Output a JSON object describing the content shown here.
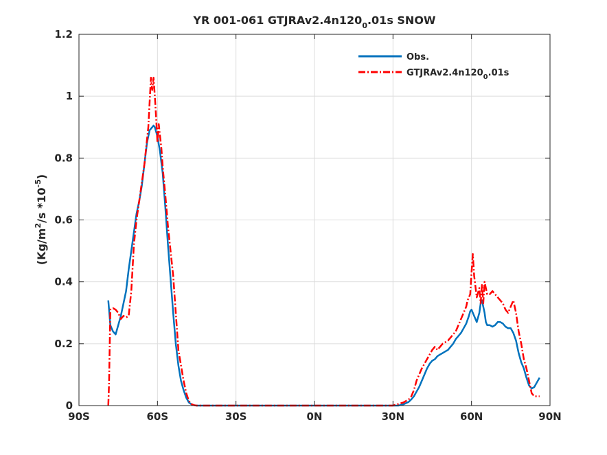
{
  "chart_data": {
    "type": "line",
    "title": "YR 001-061 GTJRAv2.4n120",
    "title_subscript": "0",
    "title_suffix": ".01s SNOW",
    "ylabel": "(Kg/m",
    "ylabel_sup1": "2",
    "ylabel_mid": "/s *10",
    "ylabel_sup2": "-5",
    "ylabel_end": ")",
    "xlim": [
      -90,
      90
    ],
    "ylim": [
      0,
      1.2
    ],
    "grid": true,
    "legend_position": "top-right",
    "x_ticks": [
      -90,
      -60,
      -30,
      0,
      30,
      60,
      90
    ],
    "x_tick_labels": [
      "90S",
      "60S",
      "30S",
      "0N",
      "30N",
      "60N",
      "90N"
    ],
    "y_ticks": [
      0,
      0.2,
      0.4,
      0.6,
      0.8,
      1,
      1.2
    ],
    "y_tick_labels": [
      "0",
      "0.2",
      "0.4",
      "0.6",
      "0.8",
      "1",
      "1.2"
    ],
    "series": [
      {
        "name": "Obs.",
        "color": "#0072BD",
        "dash": "solid",
        "x": [
          -78.8,
          -78,
          -77,
          -76,
          -75,
          -74,
          -73,
          -72,
          -71,
          -70,
          -69,
          -68,
          -67,
          -66,
          -65,
          -64,
          -63,
          -62,
          -61.5,
          -61,
          -60,
          -59,
          -58,
          -57,
          -56,
          -55,
          -54,
          -53,
          -52,
          -51,
          -50,
          -49,
          -48,
          -47,
          -46,
          -45,
          -40,
          -30,
          -20,
          -10,
          0,
          10,
          20,
          28,
          30,
          32,
          34,
          35,
          36,
          37,
          38,
          39,
          40,
          41,
          42,
          43,
          44,
          45,
          46,
          47,
          48,
          49,
          50,
          51,
          52,
          53,
          54,
          55,
          56,
          57,
          58,
          59,
          59.5,
          60,
          61,
          62,
          63,
          63.5,
          64,
          65,
          65.5,
          66,
          67,
          68,
          69,
          70,
          71,
          72,
          73,
          74,
          75,
          76,
          77,
          78,
          79,
          80,
          81,
          82,
          83,
          84,
          85,
          86
        ],
        "y": [
          0.34,
          0.26,
          0.24,
          0.23,
          0.26,
          0.29,
          0.33,
          0.37,
          0.44,
          0.5,
          0.56,
          0.62,
          0.66,
          0.71,
          0.78,
          0.85,
          0.89,
          0.9,
          0.905,
          0.9,
          0.87,
          0.82,
          0.75,
          0.64,
          0.52,
          0.41,
          0.3,
          0.2,
          0.13,
          0.08,
          0.05,
          0.025,
          0.01,
          0.004,
          0.001,
          0,
          0,
          0,
          0,
          0,
          0,
          0,
          0,
          0,
          0,
          0,
          0.004,
          0.008,
          0.012,
          0.02,
          0.03,
          0.045,
          0.06,
          0.08,
          0.1,
          0.12,
          0.135,
          0.145,
          0.15,
          0.16,
          0.165,
          0.17,
          0.175,
          0.18,
          0.19,
          0.2,
          0.215,
          0.225,
          0.235,
          0.25,
          0.265,
          0.29,
          0.305,
          0.31,
          0.29,
          0.27,
          0.3,
          0.33,
          0.34,
          0.3,
          0.27,
          0.26,
          0.26,
          0.255,
          0.26,
          0.27,
          0.27,
          0.265,
          0.255,
          0.25,
          0.25,
          0.235,
          0.21,
          0.17,
          0.14,
          0.12,
          0.09,
          0.065,
          0.055,
          0.06,
          0.075,
          0.09
        ]
      },
      {
        "name": "GTJRAv2.4n120",
        "name_subscript": "0",
        "name_suffix": ".01s",
        "color": "#FF0000",
        "dash": "dashdot",
        "x": [
          -78.8,
          -78.5,
          -78,
          -77,
          -76,
          -75,
          -74,
          -73,
          -72,
          -71,
          -70,
          -69,
          -68,
          -67,
          -66,
          -65,
          -64,
          -63.5,
          -63,
          -62.5,
          -62,
          -61.5,
          -61,
          -60.5,
          -60,
          -59.5,
          -59,
          -58.5,
          -58,
          -57,
          -56,
          -55,
          -54,
          -53,
          -52,
          -51,
          -50,
          -49,
          -48,
          -47,
          -46,
          -45,
          -40,
          -30,
          -20,
          -10,
          0,
          10,
          20,
          28,
          30,
          32,
          34,
          35,
          36,
          37,
          38,
          39,
          40,
          41,
          42,
          43,
          44,
          45,
          46,
          47,
          48,
          49,
          50,
          51,
          52,
          53,
          54,
          55,
          56,
          57,
          58,
          58.5,
          59,
          59.5,
          60,
          60.5,
          61,
          62,
          63,
          63.5,
          64,
          64.5,
          65,
          66,
          67,
          68,
          69,
          70,
          71,
          72,
          73,
          74,
          75,
          76,
          77,
          78,
          79,
          80,
          81,
          82,
          83,
          84,
          85,
          86
        ],
        "y": [
          0,
          0.07,
          0.31,
          0.315,
          0.31,
          0.3,
          0.28,
          0.29,
          0.285,
          0.29,
          0.37,
          0.52,
          0.6,
          0.66,
          0.72,
          0.78,
          0.86,
          0.9,
          0.98,
          1.06,
          1.02,
          1.06,
          1.0,
          0.93,
          0.85,
          0.91,
          0.87,
          0.83,
          0.77,
          0.68,
          0.58,
          0.5,
          0.42,
          0.3,
          0.18,
          0.13,
          0.08,
          0.04,
          0.015,
          0.005,
          0.001,
          0,
          0,
          0,
          0,
          0,
          0,
          0,
          0,
          0,
          0,
          0.005,
          0.01,
          0.015,
          0.02,
          0.03,
          0.05,
          0.08,
          0.1,
          0.12,
          0.135,
          0.15,
          0.165,
          0.18,
          0.19,
          0.18,
          0.19,
          0.2,
          0.205,
          0.21,
          0.22,
          0.23,
          0.24,
          0.26,
          0.28,
          0.3,
          0.32,
          0.34,
          0.35,
          0.36,
          0.43,
          0.49,
          0.42,
          0.35,
          0.38,
          0.33,
          0.39,
          0.33,
          0.4,
          0.36,
          0.36,
          0.37,
          0.36,
          0.35,
          0.34,
          0.33,
          0.31,
          0.3,
          0.32,
          0.34,
          0.3,
          0.24,
          0.2,
          0.15,
          0.12,
          0.08,
          0.04,
          0.03,
          0.03,
          0.03
        ]
      }
    ]
  }
}
